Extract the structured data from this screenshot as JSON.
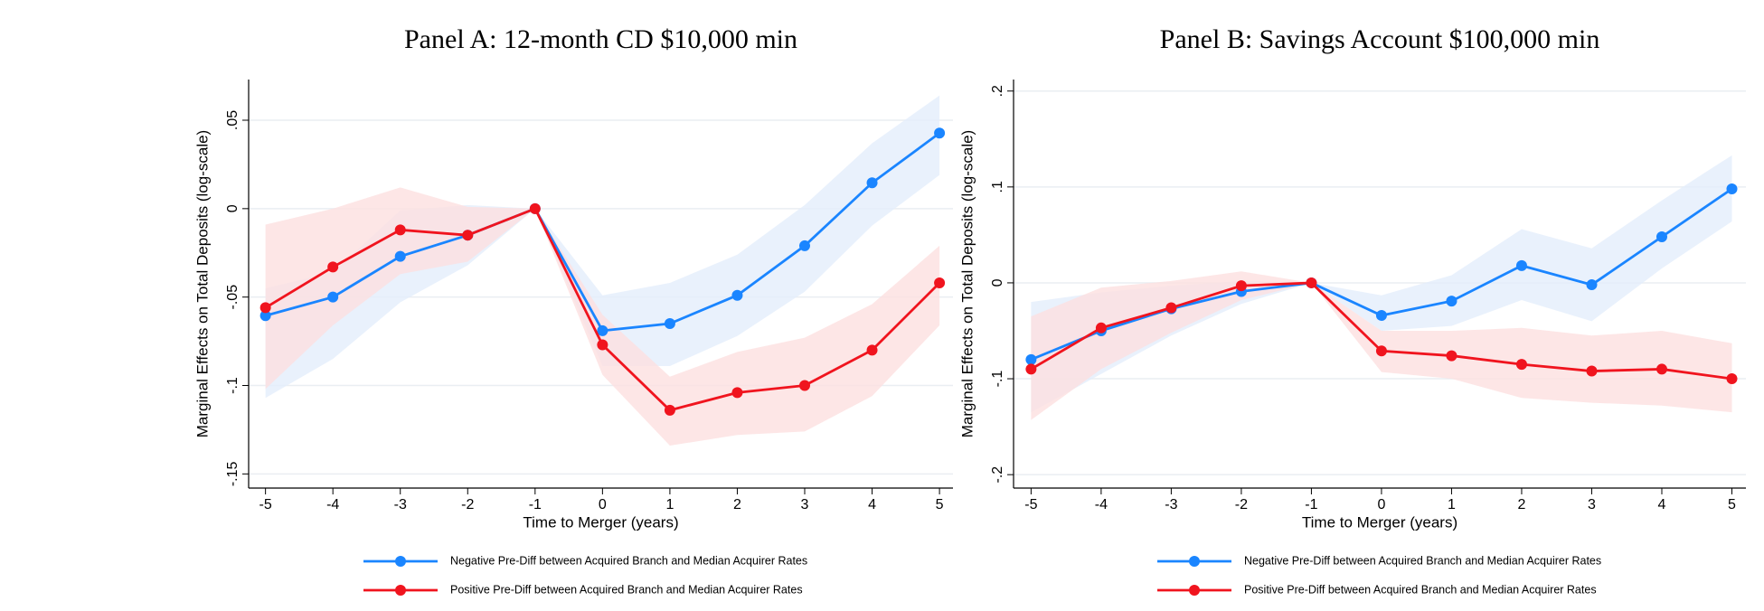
{
  "chart_data": [
    {
      "type": "line",
      "title": "Panel A: 12-month CD $10,000 min",
      "x_label": "Time to Merger (years)",
      "y_label": "Marginal Effects on Total Deposits (log-scale)",
      "x": [
        -5,
        -4,
        -3,
        -2,
        -1,
        0,
        1,
        2,
        3,
        4,
        5
      ],
      "xlim": [
        -5.25,
        5.2
      ],
      "xticks": [
        -5,
        -4,
        -3,
        -2,
        -1,
        0,
        1,
        2,
        3,
        4,
        5
      ],
      "ylim": [
        -0.158,
        0.073
      ],
      "yticks": [
        {
          "value": -0.15,
          "label": "-.15"
        },
        {
          "value": -0.1,
          "label": "-.1"
        },
        {
          "value": -0.05,
          "label": "-.05"
        },
        0,
        {
          "value": 0.05,
          "label": ".05"
        }
      ],
      "grid": true,
      "series": [
        {
          "name": "Negative Pre-Diff between Acquired Branch and Median Acquirer Rates",
          "color": "#1a85ff",
          "band_color": "#e4eefb",
          "values": [
            -0.0605,
            -0.05,
            -0.027,
            -0.015,
            0,
            -0.069,
            -0.065,
            -0.049,
            -0.021,
            0.0146,
            0.0427
          ],
          "lower": [
            -0.107,
            -0.085,
            -0.053,
            -0.032,
            0,
            -0.089,
            -0.089,
            -0.072,
            -0.047,
            -0.0096,
            0.019
          ],
          "upper": [
            -0.045,
            -0.036,
            -0.001,
            0.002,
            0,
            -0.049,
            -0.042,
            -0.026,
            0.002,
            0.037,
            0.064
          ]
        },
        {
          "name": "Positive Pre-Diff between Acquired Branch and Median Acquirer Rates",
          "color": "#f0141e",
          "band_color": "#fde0e0",
          "values": [
            -0.056,
            -0.033,
            -0.012,
            -0.015,
            0,
            -0.077,
            -0.114,
            -0.104,
            -0.1,
            -0.08,
            -0.042
          ],
          "lower": [
            -0.102,
            -0.066,
            -0.037,
            -0.03,
            0,
            -0.094,
            -0.134,
            -0.128,
            -0.126,
            -0.106,
            -0.066
          ],
          "upper": [
            -0.009,
            0.0,
            0.012,
            0.001,
            0,
            -0.06,
            -0.095,
            -0.081,
            -0.073,
            -0.054,
            -0.021
          ]
        }
      ]
    },
    {
      "type": "line",
      "title": "Panel B: Savings Account $100,000 min",
      "x_label": "Time to Merger (years)",
      "y_label": "Marginal Effects on Total Deposits (log-scale)",
      "x": [
        -5,
        -4,
        -3,
        -2,
        -1,
        0,
        1,
        2,
        3,
        4,
        5
      ],
      "xlim": [
        -5.25,
        5.2
      ],
      "xticks": [
        -5,
        -4,
        -3,
        -2,
        -1,
        0,
        1,
        2,
        3,
        4,
        5
      ],
      "ylim": [
        -0.214,
        0.212
      ],
      "yticks": [
        {
          "value": -0.2,
          "label": "-.2"
        },
        {
          "value": -0.1,
          "label": "-.1"
        },
        0,
        {
          "value": 0.1,
          "label": ".1"
        },
        {
          "value": 0.2,
          "label": ".2"
        }
      ],
      "grid": true,
      "series": [
        {
          "name": "Negative Pre-Diff between Acquired Branch and Median Acquirer Rates",
          "color": "#1a85ff",
          "band_color": "#e4eefb",
          "values": [
            -0.08,
            -0.05,
            -0.027,
            -0.009,
            0,
            -0.034,
            -0.019,
            0.018,
            -0.002,
            0.048,
            0.098
          ],
          "lower": [
            -0.135,
            -0.095,
            -0.055,
            -0.022,
            0,
            -0.05,
            -0.045,
            -0.018,
            -0.04,
            0.015,
            0.064
          ],
          "upper": [
            -0.02,
            -0.01,
            -0.003,
            0.002,
            0,
            -0.013,
            0.008,
            0.056,
            0.036,
            0.086,
            0.133
          ]
        },
        {
          "name": "Positive Pre-Diff between Acquired Branch and Median Acquirer Rates",
          "color": "#f0141e",
          "band_color": "#fde0e0",
          "values": [
            -0.09,
            -0.047,
            -0.026,
            -0.003,
            0,
            -0.071,
            -0.076,
            -0.085,
            -0.092,
            -0.09,
            -0.1
          ],
          "lower": [
            -0.143,
            -0.09,
            -0.052,
            -0.018,
            0,
            -0.093,
            -0.1,
            -0.12,
            -0.125,
            -0.128,
            -0.135
          ],
          "upper": [
            -0.035,
            -0.005,
            0.002,
            0.012,
            0,
            -0.05,
            -0.05,
            -0.047,
            -0.055,
            -0.05,
            -0.063
          ]
        }
      ]
    }
  ]
}
